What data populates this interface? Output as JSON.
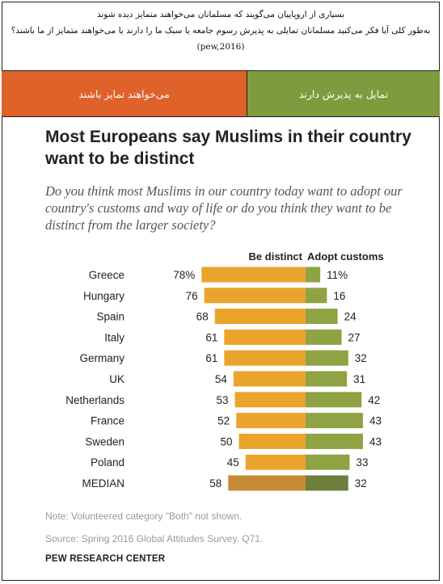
{
  "header": {
    "line1": "بسیاری از اروپاییان می‌گویند که مسلمانان می‌خواهند متمایز دیده شوند",
    "line2": "به‌طور کلی آیا فکر می‌کنید مسلمانان تمایلی به پذیرش رسوم جامعه یا سبک ما را دارند یا می‌خواهند متمایز از ما باشند؟",
    "citation": "(pew,2016)"
  },
  "bands": {
    "left_label": "می‌خواهند تمایز باشند",
    "right_label": "تمایل به پذیرش دارند",
    "left_color": "#e0622b",
    "right_color": "#7e9b3e"
  },
  "chart_data": {
    "type": "bar",
    "title": "Most Europeans say Muslims in their country want to be distinct",
    "subtitle": "Do you think most Muslims in our country today want to adopt our country's customs and way of life or do you think they want to be distinct from the larger society?",
    "categories": [
      "Greece",
      "Hungary",
      "Spain",
      "Italy",
      "Germany",
      "UK",
      "Netherlands",
      "France",
      "Sweden",
      "Poland",
      "MEDIAN"
    ],
    "series": [
      {
        "name": "Be distinct",
        "values": [
          78,
          76,
          68,
          61,
          61,
          54,
          53,
          52,
          50,
          45,
          58
        ],
        "labels": [
          "78%",
          "76",
          "68",
          "61",
          "61",
          "54",
          "53",
          "52",
          "50",
          "45",
          "58"
        ],
        "color": "#eba42b",
        "median_color": "#c78a35"
      },
      {
        "name": "Adopt customs",
        "values": [
          11,
          16,
          24,
          27,
          32,
          31,
          42,
          43,
          43,
          33,
          32
        ],
        "labels": [
          "11%",
          "16",
          "24",
          "27",
          "32",
          "31",
          "42",
          "43",
          "43",
          "33",
          "32"
        ],
        "color": "#8fa244",
        "median_color": "#6e7f3c"
      }
    ],
    "note": "Note: Volunteered category \"Both\" not shown.",
    "source": "Source: Spring 2016 Global Attitudes Survey. Q71.",
    "brand": "PEW RESEARCH CENTER"
  }
}
